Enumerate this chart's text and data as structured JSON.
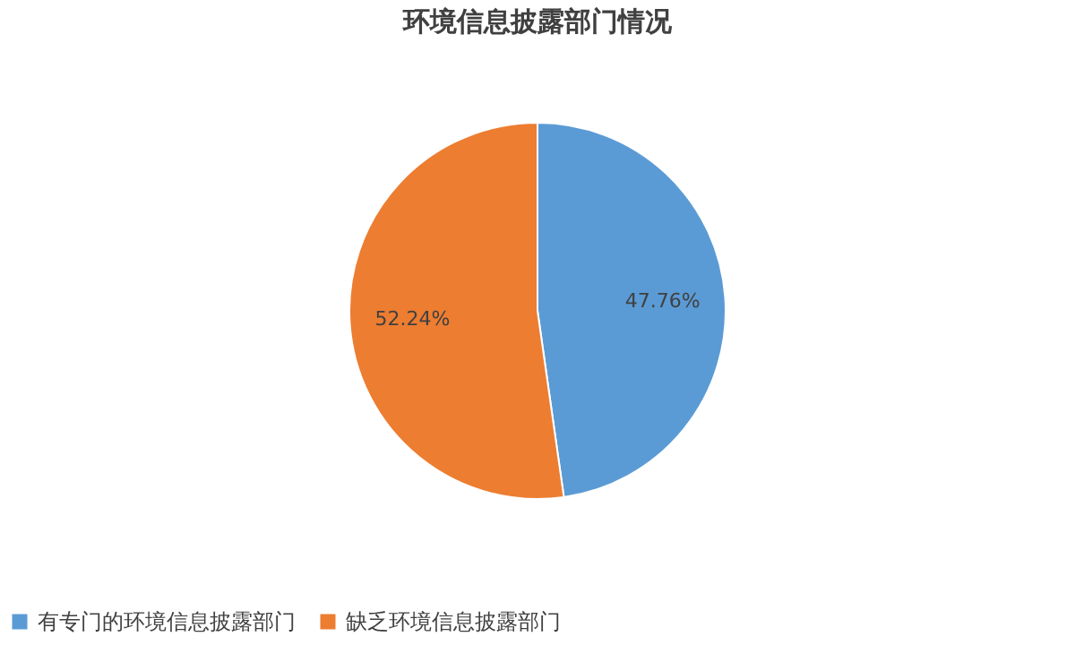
{
  "chart_data": {
    "type": "pie",
    "title": "环境信息披露部门情况",
    "categories": [
      "有专门的环境信息披露部门",
      "缺乏环境信息披露部门"
    ],
    "values": [
      47.76,
      52.24
    ],
    "colors": [
      "#5b9bd5",
      "#ed7d31"
    ],
    "value_labels": [
      "47.76%",
      "52.24%"
    ],
    "legend": "bottom"
  }
}
